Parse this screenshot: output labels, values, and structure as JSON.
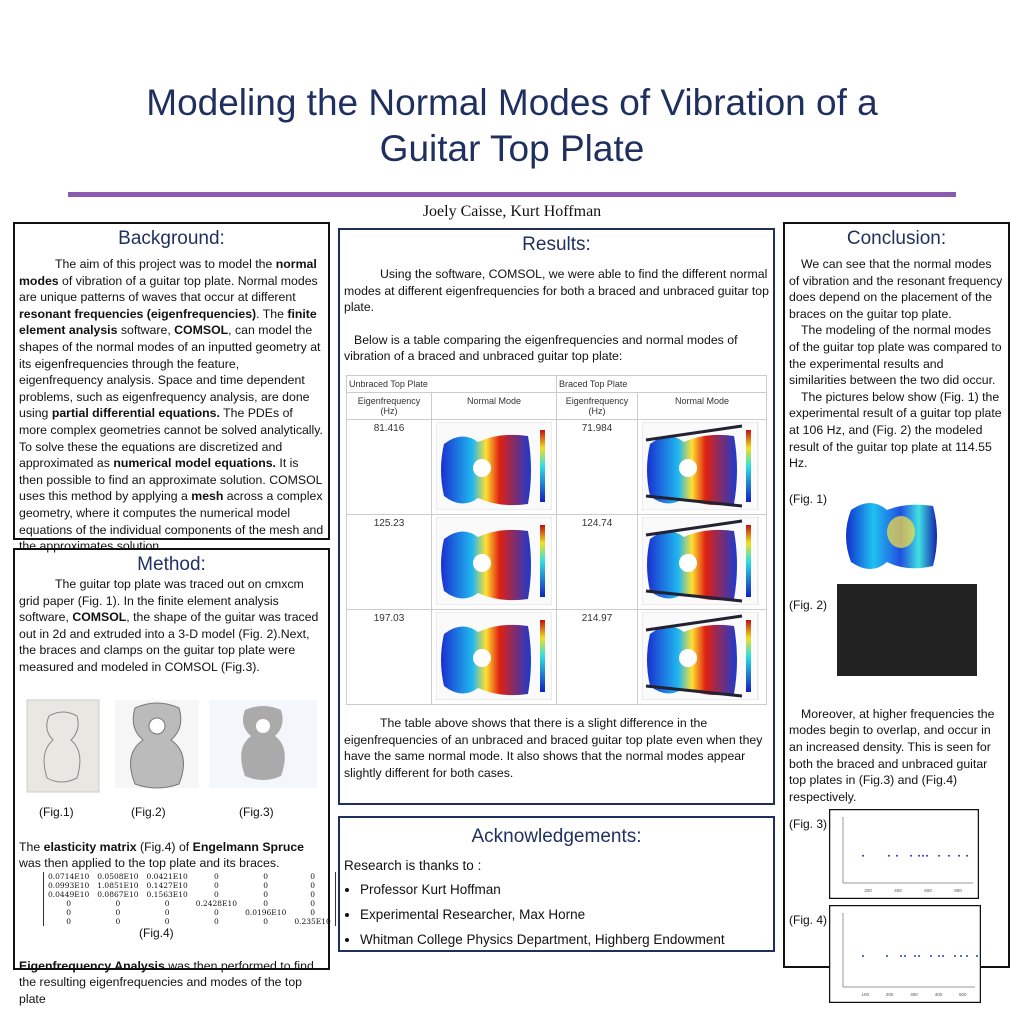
{
  "header": {
    "title": "Modeling the Normal Modes of Vibration of a Guitar Top Plate",
    "authors": "Joely Caisse, Kurt Hoffman"
  },
  "background": {
    "heading": "Background:",
    "paragraph": [
      "The aim of this project was to model the ",
      {
        "bold": "normal modes"
      },
      " of vibration of a guitar top plate. Normal modes are unique patterns of waves that occur at different ",
      {
        "bold": "resonant frequencies (eigenfrequencies)"
      },
      ". The ",
      {
        "bold": "finite element analysis"
      },
      " software, ",
      {
        "bold": "COMSOL"
      },
      ", can model the shapes of the normal modes of an inputted geometry at its eigenfrequencies through the feature, eigenfrequency analysis. Space and time dependent problems, such as eigenfrequency analysis, are done using ",
      {
        "bold": "partial differential equations."
      },
      " The PDEs of more complex geometries cannot be solved analytically. To solve these the equations are discretized and approximated as ",
      {
        "bold": "numerical model equations."
      },
      " It is then possible to find an approximate solution. COMSOL uses this method by applying a ",
      {
        "bold": "mesh"
      },
      " across a complex geometry, where it computes the numerical model equations of the individual components of the mesh and the approximates solution."
    ]
  },
  "method": {
    "heading": "Method:",
    "paragraph": [
      "The guitar top plate was traced out on cmxcm grid paper (Fig. 1). In the finite element analysis software, ",
      {
        "bold": "COMSOL"
      },
      ", the shape of the guitar was traced out in 2d and extruded into a 3-D model (Fig. 2).Next, the braces and clamps on the guitar top plate were measured and modeled in COMSOL (Fig.3)."
    ],
    "figures": [
      "(Fig.1)",
      "(Fig.2)",
      "(Fig.3)"
    ],
    "elasticity_text": [
      "The ",
      {
        "bold": "elasticity matrix"
      },
      " (Fig.4) of ",
      {
        "bold": "Engelmann Spruce"
      },
      " was then applied to the top plate and its braces."
    ],
    "matrix": [
      [
        "0.0714E10",
        "0.0508E10",
        "0.0421E10",
        "0",
        "0",
        "0"
      ],
      [
        "0.0993E10",
        "1.0851E10",
        "0.1427E10",
        "0",
        "0",
        "0"
      ],
      [
        "0.0449E10",
        "0.0867E10",
        "0.1563E10",
        "0",
        "0",
        "0"
      ],
      [
        "0",
        "0",
        "0",
        "0.2428E10",
        "0",
        "0"
      ],
      [
        "0",
        "0",
        "0",
        "0",
        "0.0196E10",
        "0"
      ],
      [
        "0",
        "0",
        "0",
        "0",
        "0",
        "0.235E10"
      ]
    ],
    "matrix_caption": "(Fig.4)",
    "closing": [
      {
        "bold": "Eigenfrequency Analysis"
      },
      " was then performed to find the resulting eigenfrequencies and modes of the top plate"
    ]
  },
  "results": {
    "heading": "Results:",
    "paragraphs": [
      "Using the software, COMSOL, we were able to find the different normal modes at different eigenfrequencies for both a braced and unbraced guitar top plate.",
      "Below is a table comparing the eigenfrequencies and normal modes of vibration of a braced and unbraced guitar top plate:"
    ],
    "table": {
      "groups": [
        "Unbraced Top Plate",
        "Braced Top Plate"
      ],
      "columns": [
        "Eigenfrequency (Hz)",
        "Normal Mode",
        "Eigenfrequency (Hz)",
        "Normal Mode"
      ],
      "rows": [
        [
          "81.416",
          "71.984"
        ],
        [
          "125.23",
          "124.74"
        ],
        [
          "197.03",
          "214.97"
        ]
      ]
    },
    "closing": "The table above shows that there is a slight difference in the eigenfrequencies of an unbraced and braced guitar top plate even when they have the same normal mode. It also shows that the normal modes appear slightly different for both cases."
  },
  "acknowledgements": {
    "heading": "Acknowledgements:",
    "intro": "Research is thanks to :",
    "items": [
      "Professor Kurt Hoffman",
      "Experimental Researcher, Max Horne",
      "Whitman College Physics Department, Highberg Endowment"
    ]
  },
  "conclusion": {
    "heading": "Conclusion:",
    "paragraphs": [
      "We can see that the normal modes of vibration and the resonant frequency does depend on the placement of the braces on the guitar top plate.",
      "The modeling of the normal modes of the guitar top plate was compared to the experimental results and similarities between the two did occur.",
      "The pictures below show (Fig. 1) the experimental result of a guitar top plate at 106 Hz, and (Fig. 2) the modeled result of the guitar top plate at 114.55 Hz.",
      "Moreover, at higher frequencies the modes begin to overlap, and occur in an increased density. This is seen for both the braced and unbraced guitar top plates in (Fig.3) and (Fig.4) respectively."
    ],
    "figures": [
      "(Fig. 1)",
      "(Fig. 2)",
      "(Fig. 3)",
      "(Fig. 4)"
    ],
    "plot_xticks": [
      [
        "200",
        "400",
        "600",
        "800"
      ],
      [
        "100",
        "200",
        "300",
        "400",
        "500"
      ]
    ]
  }
}
